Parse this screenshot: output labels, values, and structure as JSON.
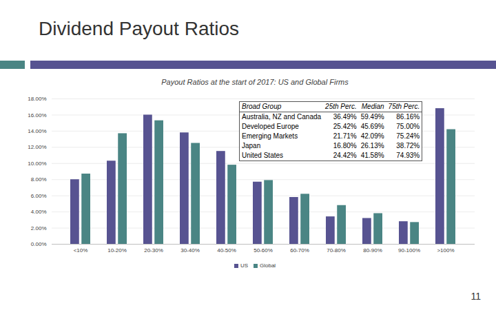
{
  "slide": {
    "title": "Dividend Payout Ratios",
    "page_number": "11"
  },
  "chart_data": {
    "type": "bar",
    "title": "Payout Ratios at the start of 2017: US and Global Firms",
    "categories": [
      "<10%",
      "10-20%",
      "20-30%",
      "30-40%",
      "40-50%",
      "50-60%",
      "60-70%",
      "70-80%",
      "80-90%",
      "90-100%",
      ">100%"
    ],
    "series": [
      {
        "name": "US",
        "color": "#575391",
        "values": [
          8.0,
          10.3,
          16.0,
          13.8,
          11.5,
          7.7,
          5.8,
          3.4,
          3.2,
          2.8,
          16.8
        ]
      },
      {
        "name": "Global",
        "color": "#4a8584",
        "values": [
          8.7,
          13.7,
          15.3,
          12.5,
          9.8,
          7.9,
          6.2,
          4.8,
          3.8,
          2.7,
          14.2
        ]
      }
    ],
    "ylim": [
      0,
      18
    ],
    "yticks": [
      {
        "value": 0,
        "label": "0.00%"
      },
      {
        "value": 2,
        "label": "2.00%"
      },
      {
        "value": 4,
        "label": "4.00%"
      },
      {
        "value": 6,
        "label": "6.00%"
      },
      {
        "value": 8,
        "label": "8.00%"
      },
      {
        "value": 10,
        "label": "10.00%"
      },
      {
        "value": 12,
        "label": "12.00%"
      },
      {
        "value": 14,
        "label": "14.00%"
      },
      {
        "value": 16,
        "label": "16.00%"
      },
      {
        "value": 18,
        "label": "18.00%"
      }
    ],
    "grid": true,
    "legend": "bottom"
  },
  "table": {
    "columns": [
      "Broad Group",
      "25th Perc.",
      "Median",
      "75th Perc."
    ],
    "rows": [
      [
        "Australia, NZ and Canada",
        "36.49%",
        "59.49%",
        "86.16%"
      ],
      [
        "Developed Europe",
        "25.42%",
        "45.69%",
        "75.00%"
      ],
      [
        "Emerging Markets",
        "21.71%",
        "42.09%",
        "75.24%"
      ],
      [
        "Japan",
        "16.80%",
        "26.13%",
        "38.72%"
      ],
      [
        "United States",
        "24.42%",
        "41.58%",
        "74.93%"
      ]
    ]
  }
}
